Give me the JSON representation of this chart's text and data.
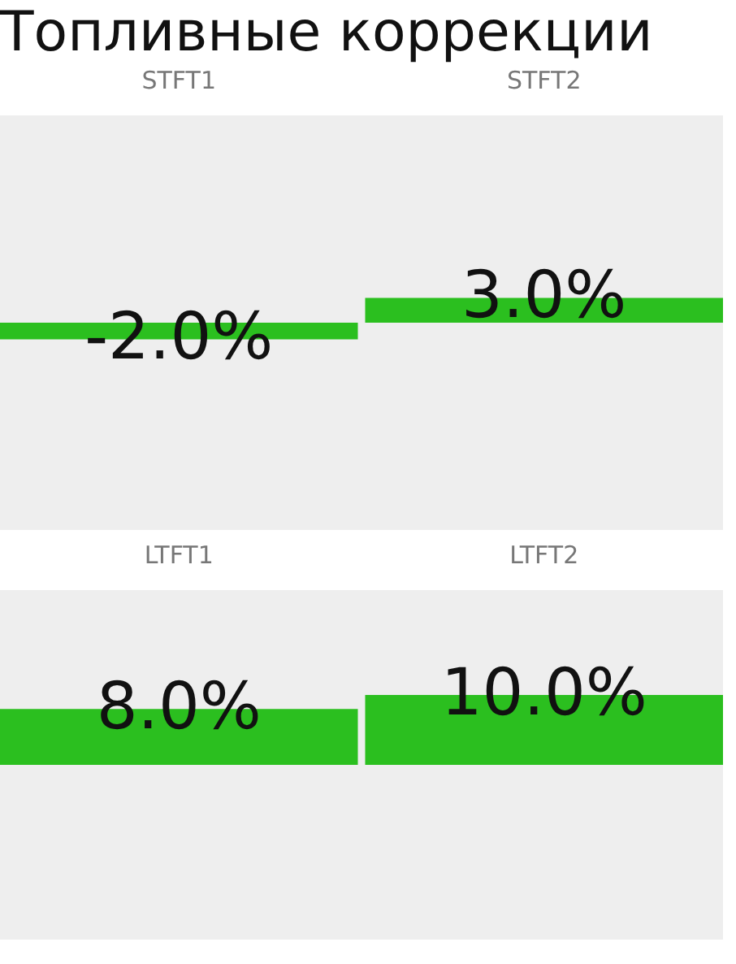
{
  "chart_data": [
    {
      "type": "bar",
      "title": "Топливные коррекции",
      "categories": [
        "STFT1",
        "STFT2"
      ],
      "values": [
        -2.0,
        3.0
      ],
      "value_labels": [
        "-2.0%",
        "3.0%"
      ],
      "color": "#2bbf1f",
      "ylim": [
        -25,
        25
      ],
      "tick_labels": "x"
    },
    {
      "type": "bar",
      "categories": [
        "LTFT1",
        "LTFT2"
      ],
      "values": [
        8.0,
        10.0
      ],
      "value_labels": [
        "8.0%",
        "10.0%"
      ],
      "color": "#2bbf1f",
      "ylim": [
        -25,
        25
      ],
      "tick_labels": "x"
    }
  ]
}
